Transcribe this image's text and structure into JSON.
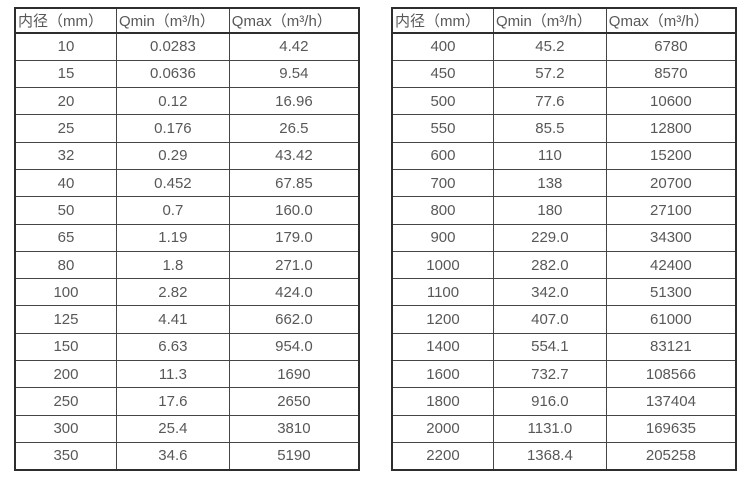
{
  "page": {
    "background_color": "#ffffff",
    "text_color": "#585858",
    "border_color": "#2d2d2d"
  },
  "chart_data": [
    {
      "type": "table",
      "columns": [
        "内径（mm）",
        "Qmin（m³/h）",
        "Qmax（m³/h）"
      ],
      "rows": [
        [
          "10",
          "0.0283",
          "4.42"
        ],
        [
          "15",
          "0.0636",
          "9.54"
        ],
        [
          "20",
          "0.12",
          "16.96"
        ],
        [
          "25",
          "0.176",
          "26.5"
        ],
        [
          "32",
          "0.29",
          "43.42"
        ],
        [
          "40",
          "0.452",
          "67.85"
        ],
        [
          "50",
          "0.7",
          "160.0"
        ],
        [
          "65",
          "1.19",
          "179.0"
        ],
        [
          "80",
          "1.8",
          "271.0"
        ],
        [
          "100",
          "2.82",
          "424.0"
        ],
        [
          "125",
          "4.41",
          "662.0"
        ],
        [
          "150",
          "6.63",
          "954.0"
        ],
        [
          "200",
          "11.3",
          "1690"
        ],
        [
          "250",
          "17.6",
          "2650"
        ],
        [
          "300",
          "25.4",
          "3810"
        ],
        [
          "350",
          "34.6",
          "5190"
        ]
      ]
    },
    {
      "type": "table",
      "columns": [
        "内径（mm）",
        "Qmin（m³/h）",
        "Qmax（m³/h）"
      ],
      "rows": [
        [
          "400",
          "45.2",
          "6780"
        ],
        [
          "450",
          "57.2",
          "8570"
        ],
        [
          "500",
          "77.6",
          "10600"
        ],
        [
          "550",
          "85.5",
          "12800"
        ],
        [
          "600",
          "110",
          "15200"
        ],
        [
          "700",
          "138",
          "20700"
        ],
        [
          "800",
          "180",
          "27100"
        ],
        [
          "900",
          "229.0",
          "34300"
        ],
        [
          "1000",
          "282.0",
          "42400"
        ],
        [
          "1100",
          "342.0",
          "51300"
        ],
        [
          "1200",
          "407.0",
          "61000"
        ],
        [
          "1400",
          "554.1",
          "83121"
        ],
        [
          "1600",
          "732.7",
          "108566"
        ],
        [
          "1800",
          "916.0",
          "137404"
        ],
        [
          "2000",
          "1131.0",
          "169635"
        ],
        [
          "2200",
          "1368.4",
          "205258"
        ]
      ]
    }
  ]
}
